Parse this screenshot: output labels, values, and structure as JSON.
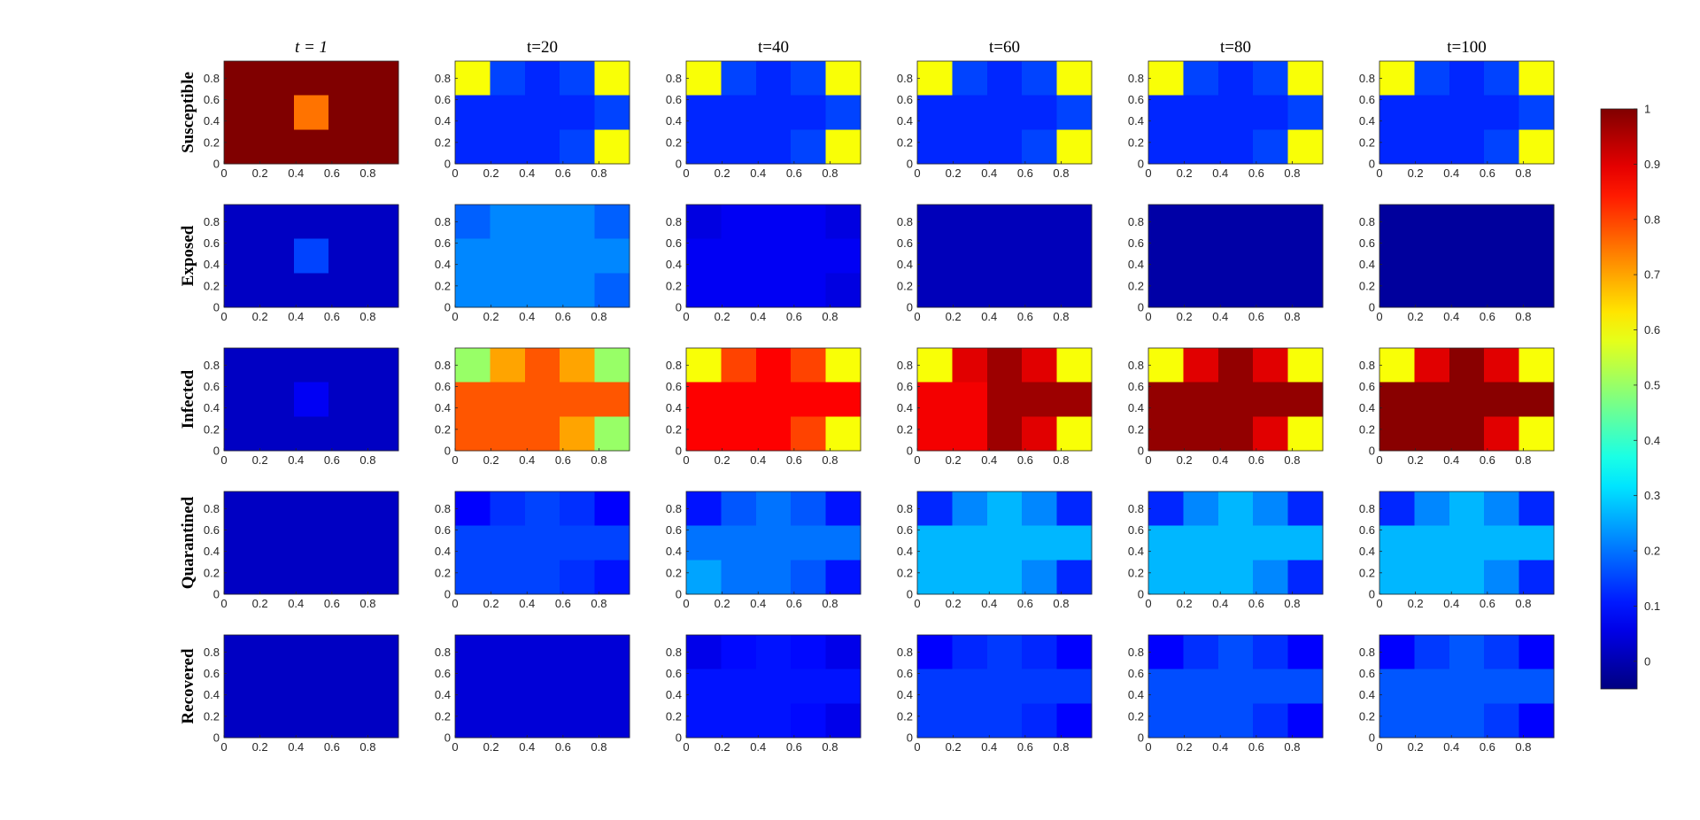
{
  "chart_data": {
    "type": "heatmap-grid",
    "columns": [
      "t = 1",
      "t=20",
      "t=40",
      "t=60",
      "t=80",
      "t=100"
    ],
    "rows": [
      "Susceptible",
      "Exposed",
      "Infected",
      "Quarantined",
      "Recovered"
    ],
    "xlim": [
      0,
      0.97
    ],
    "ylim": [
      0,
      0.96
    ],
    "xticks": [
      0,
      0.2,
      0.4,
      0.6,
      0.8
    ],
    "yticks": [
      0,
      0.2,
      0.4,
      0.6,
      0.8
    ],
    "colormap": "jet",
    "clim": [
      -0.05,
      1
    ],
    "colorbar_ticks": [
      0,
      0.1,
      0.2,
      0.3,
      0.4,
      0.5,
      0.6,
      0.7,
      0.8,
      0.9,
      1
    ],
    "z": [
      [
        [
          [
            1,
            1,
            1,
            1,
            1
          ],
          [
            1,
            1,
            0.75,
            1,
            1
          ],
          [
            1,
            1,
            1,
            1,
            1
          ]
        ],
        [
          [
            0.6,
            0.15,
            0.12,
            0.15,
            0.6
          ],
          [
            0.12,
            0.12,
            0.12,
            0.12,
            0.15
          ],
          [
            0.12,
            0.12,
            0.12,
            0.15,
            0.6
          ]
        ],
        [
          [
            0.6,
            0.15,
            0.12,
            0.15,
            0.6
          ],
          [
            0.12,
            0.12,
            0.12,
            0.12,
            0.15
          ],
          [
            0.12,
            0.12,
            0.12,
            0.15,
            0.6
          ]
        ],
        [
          [
            0.6,
            0.15,
            0.12,
            0.15,
            0.6
          ],
          [
            0.12,
            0.12,
            0.12,
            0.12,
            0.15
          ],
          [
            0.12,
            0.12,
            0.12,
            0.15,
            0.6
          ]
        ],
        [
          [
            0.6,
            0.15,
            0.12,
            0.15,
            0.6
          ],
          [
            0.12,
            0.12,
            0.12,
            0.12,
            0.15
          ],
          [
            0.12,
            0.12,
            0.12,
            0.15,
            0.6
          ]
        ],
        [
          [
            0.6,
            0.15,
            0.12,
            0.15,
            0.6
          ],
          [
            0.12,
            0.12,
            0.12,
            0.12,
            0.15
          ],
          [
            0.12,
            0.12,
            0.12,
            0.15,
            0.6
          ]
        ]
      ],
      [
        [
          [
            0.02,
            0.02,
            0.02,
            0.02,
            0.02
          ],
          [
            0.02,
            0.02,
            0.15,
            0.02,
            0.02
          ],
          [
            0.02,
            0.02,
            0.02,
            0.02,
            0.02
          ]
        ],
        [
          [
            0.18,
            0.22,
            0.22,
            0.22,
            0.18
          ],
          [
            0.22,
            0.22,
            0.22,
            0.22,
            0.22
          ],
          [
            0.22,
            0.22,
            0.22,
            0.22,
            0.18
          ]
        ],
        [
          [
            0.05,
            0.07,
            0.07,
            0.07,
            0.05
          ],
          [
            0.07,
            0.07,
            0.07,
            0.07,
            0.07
          ],
          [
            0.07,
            0.07,
            0.07,
            0.07,
            0.05
          ]
        ],
        [
          [
            0.01,
            0.01,
            0.01,
            0.01,
            0.01
          ],
          [
            0.01,
            0.01,
            0.01,
            0.01,
            0.01
          ],
          [
            0.01,
            0.01,
            0.01,
            0.01,
            0.01
          ]
        ],
        [
          [
            -0.01,
            -0.01,
            -0.01,
            -0.01,
            -0.01
          ],
          [
            -0.01,
            -0.01,
            -0.01,
            -0.01,
            -0.01
          ],
          [
            -0.01,
            -0.01,
            -0.01,
            -0.01,
            -0.01
          ]
        ],
        [
          [
            -0.02,
            -0.02,
            -0.02,
            -0.02,
            -0.02
          ],
          [
            -0.02,
            -0.02,
            -0.02,
            -0.02,
            -0.02
          ],
          [
            -0.02,
            -0.02,
            -0.02,
            -0.02,
            -0.02
          ]
        ]
      ],
      [
        [
          [
            0.02,
            0.02,
            0.02,
            0.02,
            0.02
          ],
          [
            0.02,
            0.02,
            0.07,
            0.02,
            0.02
          ],
          [
            0.02,
            0.02,
            0.02,
            0.02,
            0.02
          ]
        ],
        [
          [
            0.5,
            0.7,
            0.78,
            0.7,
            0.5
          ],
          [
            0.78,
            0.78,
            0.78,
            0.78,
            0.78
          ],
          [
            0.78,
            0.78,
            0.78,
            0.7,
            0.5
          ]
        ],
        [
          [
            0.6,
            0.8,
            0.87,
            0.8,
            0.6
          ],
          [
            0.87,
            0.87,
            0.87,
            0.87,
            0.87
          ],
          [
            0.87,
            0.87,
            0.87,
            0.8,
            0.6
          ]
        ],
        [
          [
            0.6,
            0.9,
            0.97,
            0.9,
            0.6
          ],
          [
            0.88,
            0.88,
            0.97,
            0.97,
            0.97
          ],
          [
            0.88,
            0.88,
            0.97,
            0.9,
            0.6
          ]
        ],
        [
          [
            0.6,
            0.9,
            0.98,
            0.9,
            0.6
          ],
          [
            0.98,
            0.98,
            0.98,
            0.98,
            0.98
          ],
          [
            0.98,
            0.98,
            0.98,
            0.9,
            0.6
          ]
        ],
        [
          [
            0.6,
            0.9,
            0.99,
            0.9,
            0.6
          ],
          [
            0.99,
            0.99,
            0.99,
            0.99,
            0.99
          ],
          [
            0.99,
            0.99,
            0.99,
            0.9,
            0.6
          ]
        ]
      ],
      [
        [
          [
            0.02,
            0.02,
            0.02,
            0.02,
            0.02
          ],
          [
            0.02,
            0.02,
            0.02,
            0.02,
            0.02
          ],
          [
            0.02,
            0.02,
            0.02,
            0.02,
            0.02
          ]
        ],
        [
          [
            0.08,
            0.13,
            0.15,
            0.13,
            0.08
          ],
          [
            0.15,
            0.15,
            0.15,
            0.15,
            0.15
          ],
          [
            0.15,
            0.15,
            0.15,
            0.13,
            0.1
          ]
        ],
        [
          [
            0.1,
            0.17,
            0.2,
            0.17,
            0.1
          ],
          [
            0.2,
            0.2,
            0.2,
            0.2,
            0.2
          ],
          [
            0.25,
            0.2,
            0.2,
            0.17,
            0.1
          ]
        ],
        [
          [
            0.12,
            0.22,
            0.27,
            0.22,
            0.12
          ],
          [
            0.27,
            0.27,
            0.27,
            0.27,
            0.27
          ],
          [
            0.27,
            0.27,
            0.27,
            0.22,
            0.12
          ]
        ],
        [
          [
            0.12,
            0.22,
            0.27,
            0.22,
            0.12
          ],
          [
            0.27,
            0.27,
            0.27,
            0.27,
            0.27
          ],
          [
            0.27,
            0.27,
            0.27,
            0.22,
            0.12
          ]
        ],
        [
          [
            0.12,
            0.22,
            0.27,
            0.22,
            0.12
          ],
          [
            0.27,
            0.27,
            0.27,
            0.27,
            0.27
          ],
          [
            0.27,
            0.27,
            0.27,
            0.22,
            0.12
          ]
        ]
      ],
      [
        [
          [
            0.02,
            0.02,
            0.02,
            0.02,
            0.02
          ],
          [
            0.02,
            0.02,
            0.02,
            0.02,
            0.02
          ],
          [
            0.02,
            0.02,
            0.02,
            0.02,
            0.02
          ]
        ],
        [
          [
            0.04,
            0.04,
            0.04,
            0.04,
            0.04
          ],
          [
            0.04,
            0.04,
            0.04,
            0.04,
            0.04
          ],
          [
            0.04,
            0.04,
            0.04,
            0.04,
            0.04
          ]
        ],
        [
          [
            0.06,
            0.09,
            0.1,
            0.09,
            0.06
          ],
          [
            0.1,
            0.1,
            0.1,
            0.1,
            0.1
          ],
          [
            0.1,
            0.1,
            0.1,
            0.09,
            0.06
          ]
        ],
        [
          [
            0.08,
            0.12,
            0.14,
            0.12,
            0.08
          ],
          [
            0.14,
            0.14,
            0.14,
            0.14,
            0.14
          ],
          [
            0.14,
            0.14,
            0.14,
            0.12,
            0.08
          ]
        ],
        [
          [
            0.08,
            0.13,
            0.16,
            0.13,
            0.08
          ],
          [
            0.16,
            0.16,
            0.16,
            0.16,
            0.16
          ],
          [
            0.16,
            0.16,
            0.16,
            0.13,
            0.08
          ]
        ],
        [
          [
            0.08,
            0.14,
            0.17,
            0.14,
            0.08
          ],
          [
            0.17,
            0.17,
            0.17,
            0.17,
            0.17
          ],
          [
            0.17,
            0.17,
            0.17,
            0.14,
            0.08
          ]
        ]
      ]
    ]
  }
}
